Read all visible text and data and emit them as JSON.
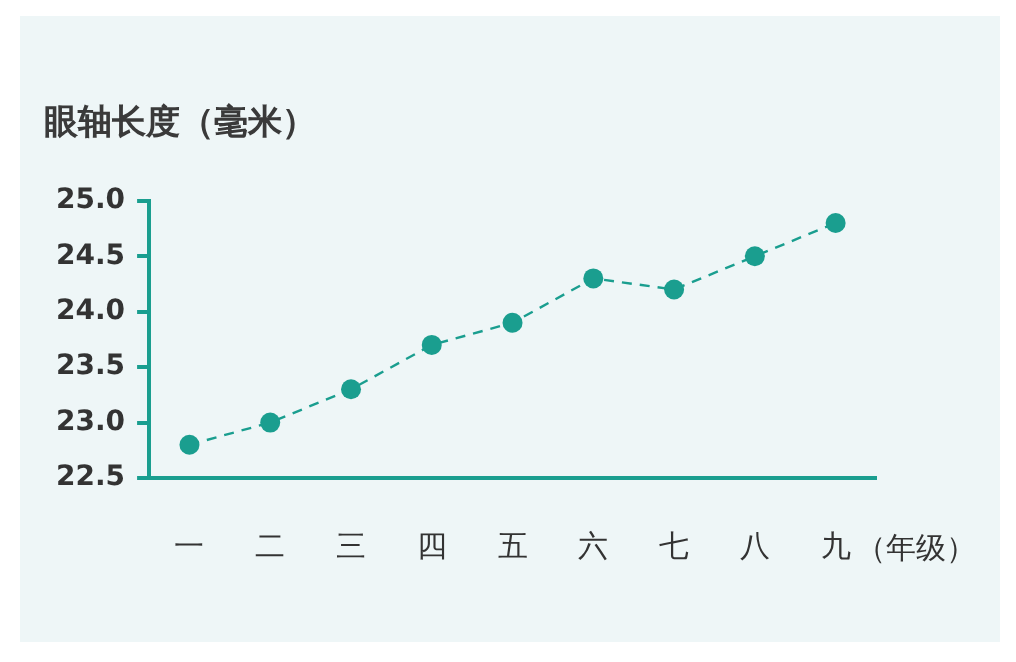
{
  "chart_data": {
    "type": "line",
    "title": "眼轴长度（毫米）",
    "xlabel": "（年级）",
    "categories": [
      "一",
      "二",
      "三",
      "四",
      "五",
      "六",
      "七",
      "八",
      "九"
    ],
    "series": [
      {
        "color": "#1a9e8f",
        "values": [
          22.8,
          23.0,
          23.3,
          23.7,
          23.9,
          24.3,
          24.2,
          24.5,
          24.8
        ]
      }
    ],
    "ylim": [
      22.5,
      25.0
    ],
    "yticks": [
      {
        "value": 22.5,
        "label": "22.5"
      },
      {
        "value": 23.0,
        "label": "23.0"
      },
      {
        "value": 23.5,
        "label": "23.5"
      },
      {
        "value": 24.0,
        "label": "24.0"
      },
      {
        "value": 24.5,
        "label": "24.5"
      },
      {
        "value": 25.0,
        "label": "25.0"
      }
    ],
    "grid": false,
    "legend": false,
    "marker": "circle",
    "line_style": "dashed"
  }
}
